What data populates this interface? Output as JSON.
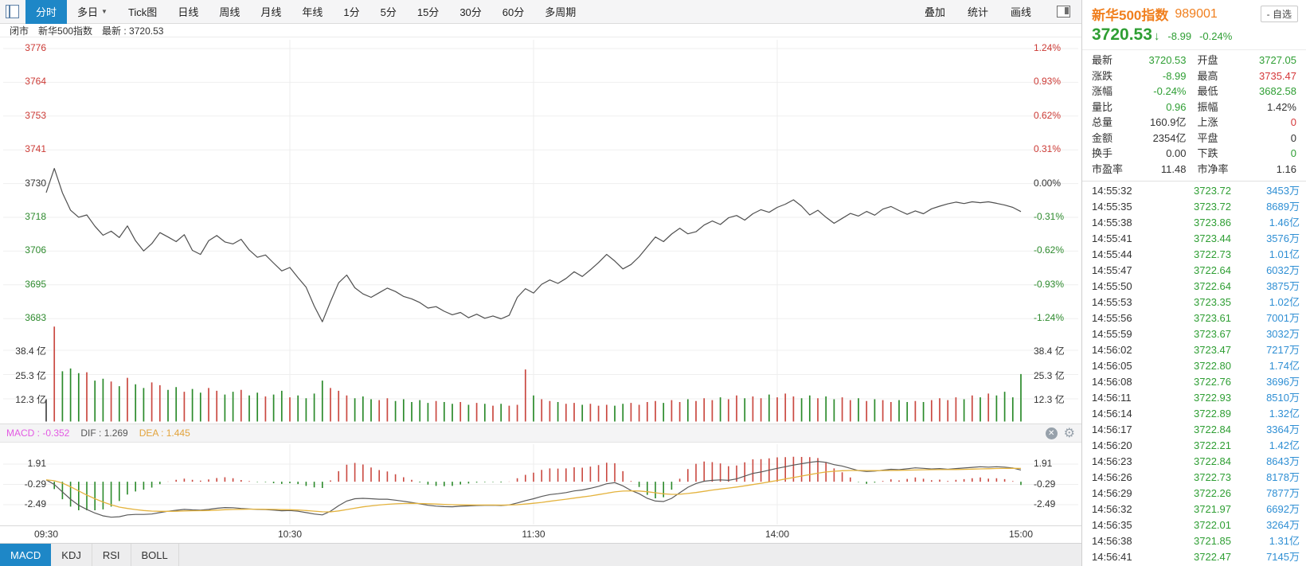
{
  "toolbar": {
    "tabs": [
      {
        "label": "分时",
        "active": true
      },
      {
        "label": "多日",
        "caret": true
      },
      {
        "label": "Tick图"
      },
      {
        "label": "日线"
      },
      {
        "label": "周线"
      },
      {
        "label": "月线"
      },
      {
        "label": "年线"
      },
      {
        "label": "1分"
      },
      {
        "label": "5分"
      },
      {
        "label": "15分"
      },
      {
        "label": "30分"
      },
      {
        "label": "60分"
      },
      {
        "label": "多周期"
      }
    ],
    "right_actions": [
      {
        "label": "叠加"
      },
      {
        "label": "统计"
      },
      {
        "label": "画线"
      }
    ]
  },
  "subheader": {
    "status": "闭市",
    "name": "新华500指数",
    "last": "最新 : 3720.53"
  },
  "quote": {
    "name": "新华500指数",
    "code": "989001",
    "watch": "- 自选",
    "price": "3720.53",
    "arrow": "↓",
    "chg": "-8.99",
    "pct": "-0.24%",
    "stats": [
      [
        {
          "label": "最新",
          "value": "3720.53",
          "c": "g"
        },
        {
          "label": "开盘",
          "value": "3727.05",
          "c": "g"
        }
      ],
      [
        {
          "label": "涨跌",
          "value": "-8.99",
          "c": "g"
        },
        {
          "label": "最高",
          "value": "3735.47",
          "c": "r"
        }
      ],
      [
        {
          "label": "涨幅",
          "value": "-0.24%",
          "c": "g"
        },
        {
          "label": "最低",
          "value": "3682.58",
          "c": "g"
        }
      ],
      [
        {
          "label": "量比",
          "value": "0.96",
          "c": "g"
        },
        {
          "label": "振幅",
          "value": "1.42%",
          "c": "k"
        }
      ],
      [
        {
          "label": "总量",
          "value": "160.9亿",
          "c": "k"
        },
        {
          "label": "上涨",
          "value": "0",
          "c": "r"
        }
      ],
      [
        {
          "label": "金额",
          "value": "2354亿",
          "c": "k"
        },
        {
          "label": "平盘",
          "value": "0",
          "c": "k"
        }
      ],
      [
        {
          "label": "换手",
          "value": "0.00",
          "c": "k"
        },
        {
          "label": "下跌",
          "value": "0",
          "c": "g"
        }
      ],
      [
        {
          "label": "市盈率",
          "value": "11.48",
          "c": "k"
        },
        {
          "label": "市净率",
          "value": "1.16",
          "c": "k"
        }
      ]
    ],
    "ticks": [
      {
        "time": "14:55:32",
        "price": "3723.72",
        "vol": "3453万"
      },
      {
        "time": "14:55:35",
        "price": "3723.72",
        "vol": "8689万"
      },
      {
        "time": "14:55:38",
        "price": "3723.86",
        "vol": "1.46亿"
      },
      {
        "time": "14:55:41",
        "price": "3723.44",
        "vol": "3576万"
      },
      {
        "time": "14:55:44",
        "price": "3722.73",
        "vol": "1.01亿"
      },
      {
        "time": "14:55:47",
        "price": "3722.64",
        "vol": "6032万"
      },
      {
        "time": "14:55:50",
        "price": "3722.64",
        "vol": "3875万"
      },
      {
        "time": "14:55:53",
        "price": "3723.35",
        "vol": "1.02亿"
      },
      {
        "time": "14:55:56",
        "price": "3723.61",
        "vol": "7001万"
      },
      {
        "time": "14:55:59",
        "price": "3723.67",
        "vol": "3032万"
      },
      {
        "time": "14:56:02",
        "price": "3723.47",
        "vol": "7217万"
      },
      {
        "time": "14:56:05",
        "price": "3722.80",
        "vol": "1.74亿"
      },
      {
        "time": "14:56:08",
        "price": "3722.76",
        "vol": "3696万"
      },
      {
        "time": "14:56:11",
        "price": "3722.93",
        "vol": "8510万"
      },
      {
        "time": "14:56:14",
        "price": "3722.89",
        "vol": "1.32亿"
      },
      {
        "time": "14:56:17",
        "price": "3722.84",
        "vol": "3364万"
      },
      {
        "time": "14:56:20",
        "price": "3722.21",
        "vol": "1.42亿"
      },
      {
        "time": "14:56:23",
        "price": "3722.84",
        "vol": "8643万"
      },
      {
        "time": "14:56:26",
        "price": "3722.73",
        "vol": "8178万"
      },
      {
        "time": "14:56:29",
        "price": "3722.26",
        "vol": "7877万"
      },
      {
        "time": "14:56:32",
        "price": "3721.97",
        "vol": "6692万"
      },
      {
        "time": "14:56:35",
        "price": "3722.01",
        "vol": "3264万"
      },
      {
        "time": "14:56:38",
        "price": "3721.85",
        "vol": "1.31亿"
      },
      {
        "time": "14:56:41",
        "price": "3722.47",
        "vol": "7145万"
      }
    ]
  },
  "axes": {
    "price_left": [
      "3776",
      "3764",
      "3753",
      "3741",
      "3730",
      "3718",
      "3706",
      "3695",
      "3683"
    ],
    "pct_right": [
      "1.24%",
      "0.93%",
      "0.62%",
      "0.31%",
      "0.00%",
      "-0.31%",
      "-0.62%",
      "-0.93%",
      "-1.24%"
    ],
    "price_colors": [
      "r",
      "r",
      "r",
      "r",
      "k",
      "g",
      "g",
      "g",
      "g"
    ],
    "vol_labels": [
      "38.4 亿",
      "25.3 亿",
      "12.3 亿"
    ],
    "macd_labels": [
      "1.91",
      "-0.29",
      "-2.49"
    ],
    "time_labels": [
      "09:30",
      "10:30",
      "11:30",
      "14:00",
      "15:00"
    ]
  },
  "macd_header": {
    "macd": "MACD : -0.352",
    "dif": "DIF : 1.269",
    "dea": "DEA : 1.445"
  },
  "bottom_tabs": [
    {
      "label": "MACD",
      "active": true
    },
    {
      "label": "KDJ"
    },
    {
      "label": "RSI"
    },
    {
      "label": "BOLL"
    }
  ],
  "colors": {
    "up_red": "#d5383a",
    "down_green": "#2e9e33",
    "axis_red": "#cc3a35",
    "axis_green": "#2e8b2e",
    "accent_blue": "#1e87c7",
    "title_orange": "#f07f1e",
    "tick_vol_blue": "#2f8fd4",
    "price_line": "#4f4f4f",
    "dea_line": "#e4b33e",
    "macd_magenta": "#e35ae3"
  },
  "chart_data": [
    {
      "type": "line",
      "name": "intraday-price",
      "title": "新华500指数 分时",
      "x_axis": {
        "labels": [
          "09:30",
          "10:30",
          "11:30",
          "14:00",
          "15:00"
        ],
        "note": "240 trading minutes, one point per 2 min"
      },
      "y_axis": {
        "ticks": [
          3776,
          3764,
          3753,
          3741,
          3730,
          3718,
          3706,
          3695,
          3683
        ],
        "pct_ticks": [
          1.24,
          0.93,
          0.62,
          0.31,
          0.0,
          -0.31,
          -0.62,
          -0.93,
          -1.24
        ]
      },
      "prev_close": 3729.52,
      "open": 3727.05,
      "high": 3735.47,
      "low": 3682.58,
      "close": 3720.53,
      "values": [
        3727.1,
        3735.4,
        3727.0,
        3721.0,
        3718.6,
        3719.4,
        3715.5,
        3712.4,
        3713.8,
        3711.6,
        3715.6,
        3710.5,
        3707.0,
        3709.5,
        3713.3,
        3711.8,
        3710.2,
        3712.6,
        3707.2,
        3705.8,
        3710.5,
        3712.3,
        3710.1,
        3709.4,
        3711.0,
        3707.3,
        3704.8,
        3705.6,
        3702.8,
        3700.1,
        3701.3,
        3697.8,
        3694.5,
        3688.0,
        3682.6,
        3689.5,
        3696.0,
        3698.7,
        3694.3,
        3692.2,
        3691.0,
        3692.6,
        3694.2,
        3693.0,
        3691.3,
        3690.5,
        3689.2,
        3687.3,
        3687.8,
        3686.2,
        3685.0,
        3685.8,
        3684.0,
        3685.2,
        3683.8,
        3684.6,
        3683.6,
        3684.8,
        3691.0,
        3694.0,
        3692.5,
        3695.5,
        3697.0,
        3695.8,
        3697.5,
        3699.8,
        3698.2,
        3700.5,
        3703.0,
        3705.8,
        3703.5,
        3700.8,
        3702.3,
        3705.0,
        3708.4,
        3711.8,
        3710.2,
        3712.8,
        3714.8,
        3712.9,
        3713.6,
        3715.9,
        3717.3,
        3716.1,
        3718.4,
        3719.2,
        3717.6,
        3719.8,
        3721.2,
        3720.3,
        3722.0,
        3723.1,
        3724.6,
        3722.4,
        3719.4,
        3721.0,
        3718.6,
        3716.5,
        3718.2,
        3719.9,
        3719.0,
        3720.6,
        3719.3,
        3721.4,
        3722.3,
        3720.9,
        3719.6,
        3720.8,
        3719.8,
        3721.5,
        3722.4,
        3723.2,
        3723.8,
        3723.3,
        3723.9,
        3723.6,
        3723.9,
        3723.4,
        3722.8,
        3722.0,
        3720.53
      ]
    },
    {
      "type": "bar",
      "name": "volume",
      "unit": "亿",
      "y_axis": {
        "ticks": [
          38.4,
          25.3,
          12.3
        ]
      },
      "values": [
        12,
        51,
        27,
        28.5,
        26,
        26.5,
        22,
        23,
        21.5,
        19,
        23.5,
        20,
        18,
        21,
        19.5,
        17,
        18.5,
        16,
        17.5,
        15.5,
        18,
        16.5,
        14.5,
        16,
        17,
        14,
        15.5,
        13.5,
        14.5,
        16.5,
        13,
        14,
        12.5,
        15,
        22,
        18,
        16.5,
        14,
        12.5,
        13.5,
        12,
        11.5,
        12.5,
        11,
        12,
        10.5,
        11.5,
        10,
        11,
        10.5,
        9.5,
        10.5,
        9,
        10,
        9.5,
        8.5,
        9.5,
        8.5,
        9,
        28,
        14,
        12,
        11,
        10.5,
        9.5,
        10,
        9,
        9.5,
        8.5,
        9,
        8.5,
        9.5,
        10,
        9,
        10.5,
        11,
        10,
        11.5,
        10.5,
        12,
        11,
        12.5,
        11.5,
        13,
        12,
        14,
        12.5,
        13.5,
        12.5,
        14.5,
        13,
        15,
        13.5,
        12.5,
        14,
        12.5,
        13.5,
        12,
        13,
        11.5,
        12.5,
        11,
        12,
        11.5,
        10.5,
        11.5,
        10.5,
        11,
        10.5,
        11.5,
        12.5,
        11.5,
        13,
        12,
        14,
        13,
        15,
        14,
        16,
        13,
        25.5
      ]
    },
    {
      "type": "line",
      "name": "macd",
      "y_axis": {
        "ticks": [
          1.91,
          -0.29,
          -2.49
        ]
      },
      "current": {
        "macd": -0.352,
        "dif": 1.269,
        "dea": 1.445
      },
      "hist_rule": "hist = 2*(dif-dea); red when >=0, green when <0",
      "series": [
        {
          "name": "DIF",
          "values": [
            0.2,
            -0.3,
            -1.1,
            -1.9,
            -2.55,
            -3.0,
            -3.4,
            -3.7,
            -3.85,
            -3.8,
            -3.6,
            -3.55,
            -3.55,
            -3.5,
            -3.35,
            -3.2,
            -3.1,
            -3.0,
            -3.05,
            -3.08,
            -3.0,
            -2.88,
            -2.8,
            -2.82,
            -2.9,
            -2.95,
            -3.0,
            -3.02,
            -3.08,
            -3.15,
            -3.12,
            -3.2,
            -3.35,
            -3.5,
            -3.6,
            -3.2,
            -2.6,
            -2.1,
            -1.85,
            -1.8,
            -1.85,
            -1.9,
            -1.9,
            -2.0,
            -2.12,
            -2.25,
            -2.4,
            -2.55,
            -2.65,
            -2.7,
            -2.72,
            -2.66,
            -2.62,
            -2.58,
            -2.56,
            -2.55,
            -2.58,
            -2.52,
            -2.3,
            -2.05,
            -1.85,
            -1.6,
            -1.4,
            -1.3,
            -1.18,
            -1.0,
            -0.9,
            -0.72,
            -0.5,
            -0.22,
            -0.1,
            -0.45,
            -0.95,
            -1.3,
            -1.8,
            -2.1,
            -2.15,
            -1.8,
            -1.2,
            -0.6,
            -0.2,
            0.05,
            0.15,
            0.2,
            0.15,
            0.3,
            0.6,
            0.9,
            1.05,
            1.25,
            1.45,
            1.62,
            1.8,
            1.95,
            2.1,
            2.2,
            2.1,
            1.85,
            1.7,
            1.45,
            1.2,
            1.1,
            1.15,
            1.25,
            1.35,
            1.3,
            1.4,
            1.5,
            1.45,
            1.38,
            1.42,
            1.35,
            1.42,
            1.48,
            1.55,
            1.62,
            1.58,
            1.62,
            1.58,
            1.48,
            1.269
          ]
        },
        {
          "name": "DEA",
          "values": [
            0.2,
            0.1,
            -0.15,
            -0.55,
            -1.0,
            -1.45,
            -1.85,
            -2.2,
            -2.5,
            -2.75,
            -2.9,
            -3.02,
            -3.12,
            -3.18,
            -3.21,
            -3.21,
            -3.2,
            -3.17,
            -3.15,
            -3.14,
            -3.12,
            -3.08,
            -3.04,
            -3.01,
            -2.99,
            -2.98,
            -2.98,
            -2.99,
            -3.0,
            -3.03,
            -3.04,
            -3.07,
            -3.12,
            -3.19,
            -3.26,
            -3.27,
            -3.17,
            -3.02,
            -2.87,
            -2.73,
            -2.62,
            -2.53,
            -2.45,
            -2.4,
            -2.36,
            -2.35,
            -2.36,
            -2.39,
            -2.42,
            -2.46,
            -2.49,
            -2.51,
            -2.52,
            -2.53,
            -2.53,
            -2.53,
            -2.54,
            -2.53,
            -2.49,
            -2.42,
            -2.34,
            -2.24,
            -2.12,
            -2.01,
            -1.9,
            -1.78,
            -1.66,
            -1.54,
            -1.4,
            -1.25,
            -1.1,
            -1.02,
            -0.99,
            -1.01,
            -1.09,
            -1.2,
            -1.31,
            -1.37,
            -1.36,
            -1.28,
            -1.17,
            -1.04,
            -0.91,
            -0.79,
            -0.69,
            -0.58,
            -0.45,
            -0.31,
            -0.17,
            -0.02,
            0.13,
            0.29,
            0.45,
            0.61,
            0.77,
            0.92,
            1.05,
            1.13,
            1.19,
            1.22,
            1.22,
            1.21,
            1.2,
            1.21,
            1.22,
            1.23,
            1.25,
            1.27,
            1.29,
            1.3,
            1.31,
            1.31,
            1.32,
            1.34,
            1.36,
            1.39,
            1.41,
            1.43,
            1.44,
            1.45,
            1.445
          ]
        }
      ]
    }
  ]
}
